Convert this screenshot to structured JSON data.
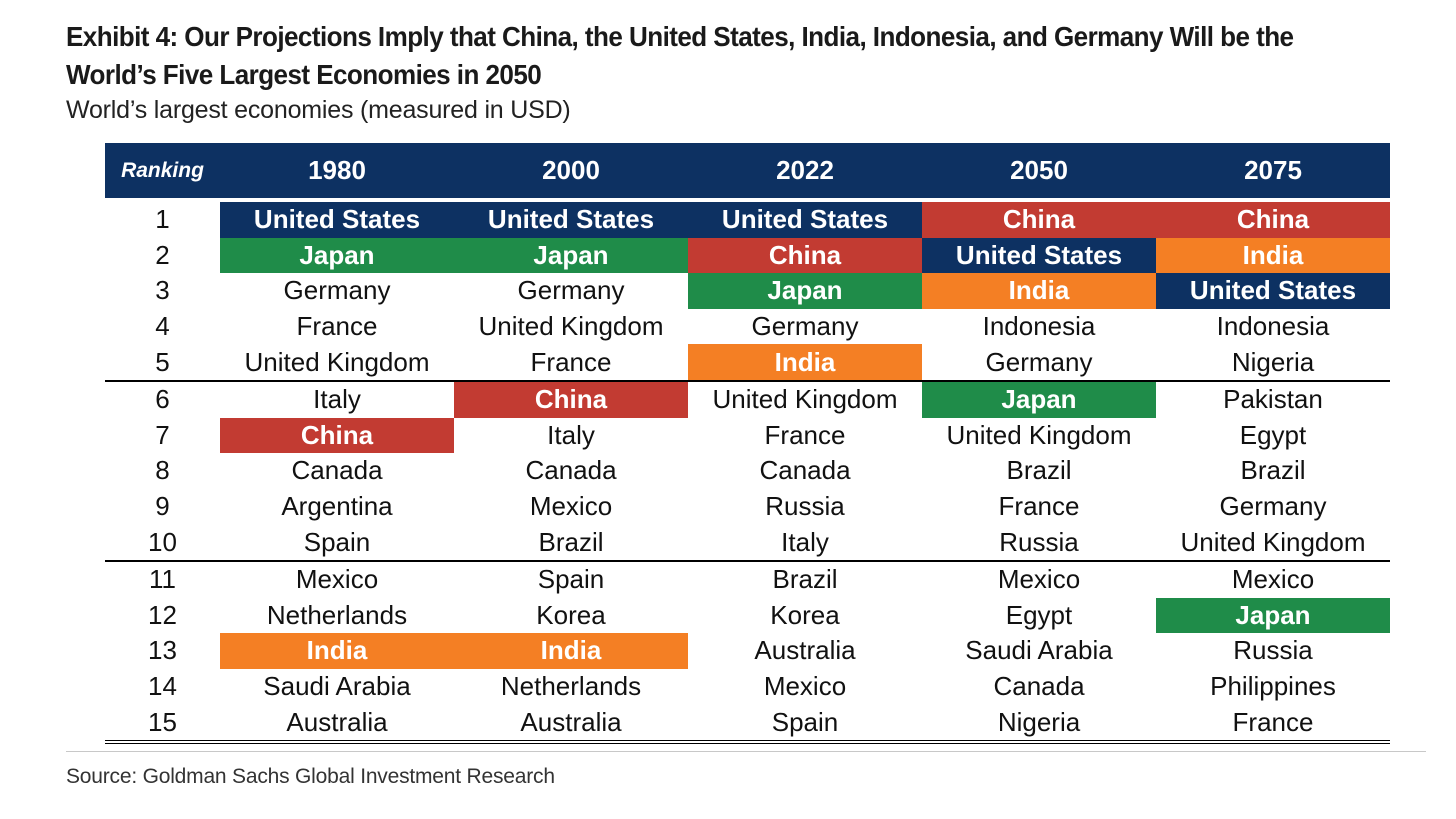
{
  "title": "Exhibit 4: Our Projections Imply that China, the United States, India, Indonesia, and Germany Will be the World’s Five Largest Economies in 2050",
  "subtitle": "World’s largest economies (measured in USD)",
  "source": "Source: Goldman Sachs Global Investment Research",
  "colors": {
    "header_bg": "#0d3162",
    "United States": "#0d3162",
    "China": "#c23b32",
    "Japan": "#1f8c49",
    "India": "#f47f24"
  },
  "chart_data": {
    "type": "table",
    "columns": [
      "Ranking",
      "1980",
      "2000",
      "2022",
      "2050",
      "2075"
    ],
    "rows": [
      [
        "1",
        "United States",
        "United States",
        "United States",
        "China",
        "China"
      ],
      [
        "2",
        "Japan",
        "Japan",
        "China",
        "United States",
        "India"
      ],
      [
        "3",
        "Germany",
        "Germany",
        "Japan",
        "India",
        "United States"
      ],
      [
        "4",
        "France",
        "United Kingdom",
        "Germany",
        "Indonesia",
        "Indonesia"
      ],
      [
        "5",
        "United Kingdom",
        "France",
        "India",
        "Germany",
        "Nigeria"
      ],
      [
        "6",
        "Italy",
        "China",
        "United Kingdom",
        "Japan",
        "Pakistan"
      ],
      [
        "7",
        "China",
        "Italy",
        "France",
        "United Kingdom",
        "Egypt"
      ],
      [
        "8",
        "Canada",
        "Canada",
        "Canada",
        "Brazil",
        "Brazil"
      ],
      [
        "9",
        "Argentina",
        "Mexico",
        "Russia",
        "France",
        "Germany"
      ],
      [
        "10",
        "Spain",
        "Brazil",
        "Italy",
        "Russia",
        "United Kingdom"
      ],
      [
        "11",
        "Mexico",
        "Spain",
        "Brazil",
        "Mexico",
        "Mexico"
      ],
      [
        "12",
        "Netherlands",
        "Korea",
        "Korea",
        "Egypt",
        "Japan"
      ],
      [
        "13",
        "India",
        "India",
        "Australia",
        "Saudi Arabia",
        "Russia"
      ],
      [
        "14",
        "Saudi Arabia",
        "Netherlands",
        "Mexico",
        "Canada",
        "Philippines"
      ],
      [
        "15",
        "Australia",
        "Australia",
        "Spain",
        "Nigeria",
        "France"
      ]
    ]
  }
}
